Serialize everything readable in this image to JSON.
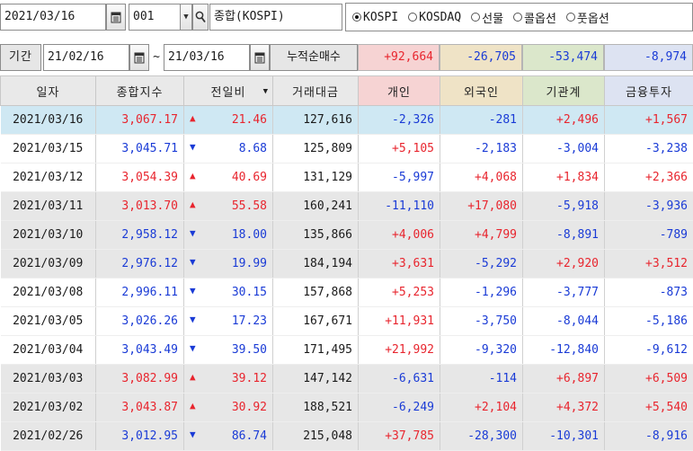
{
  "toolbar": {
    "date": "2021/03/16",
    "code": "001",
    "market_name": "종합(KOSPI)",
    "radio_options": [
      {
        "label": "KOSPI",
        "selected": true
      },
      {
        "label": "KOSDAQ",
        "selected": false
      },
      {
        "label": "선물",
        "selected": false
      },
      {
        "label": "콜옵션",
        "selected": false
      },
      {
        "label": "풋옵션",
        "selected": false
      }
    ]
  },
  "period": {
    "label": "기간",
    "start": "21/02/16",
    "sep": "~",
    "end": "21/03/16",
    "cumulative_label": "누적순매수",
    "sums": {
      "individual": "+92,664",
      "foreign": "-26,705",
      "institution": "-53,474",
      "financial": "-8,974"
    }
  },
  "colors": {
    "up": "#e8252e",
    "down": "#1a3bd6",
    "individual_header": "#f6d3d3",
    "foreign_header": "#efe3c6",
    "institution_header": "#dbe7cb",
    "financial_header": "#dde3f2",
    "selected_row": "#cfe8f3",
    "shaded_row": "#e7e7e7"
  },
  "table": {
    "headers": [
      "일자",
      "종합지수",
      "전일비",
      "거래대금",
      "개인",
      "외국인",
      "기관계",
      "금융투자"
    ],
    "rows": [
      {
        "date": "2021/03/16",
        "index": "3,067.17",
        "dir": "up",
        "change": "21.46",
        "volume": "127,616",
        "individual": "-2,326",
        "foreign": "-281",
        "institution": "+2,496",
        "financial": "+1,567",
        "style": "selected"
      },
      {
        "date": "2021/03/15",
        "index": "3,045.71",
        "dir": "down",
        "change": "8.68",
        "volume": "125,809",
        "individual": "+5,105",
        "foreign": "-2,183",
        "institution": "-3,004",
        "financial": "-3,238",
        "style": ""
      },
      {
        "date": "2021/03/12",
        "index": "3,054.39",
        "dir": "up",
        "change": "40.69",
        "volume": "131,129",
        "individual": "-5,997",
        "foreign": "+4,068",
        "institution": "+1,834",
        "financial": "+2,366",
        "style": ""
      },
      {
        "date": "2021/03/11",
        "index": "3,013.70",
        "dir": "up",
        "change": "55.58",
        "volume": "160,241",
        "individual": "-11,110",
        "foreign": "+17,080",
        "institution": "-5,918",
        "financial": "-3,936",
        "style": "shaded"
      },
      {
        "date": "2021/03/10",
        "index": "2,958.12",
        "dir": "down",
        "change": "18.00",
        "volume": "135,866",
        "individual": "+4,006",
        "foreign": "+4,799",
        "institution": "-8,891",
        "financial": "-789",
        "style": "shaded"
      },
      {
        "date": "2021/03/09",
        "index": "2,976.12",
        "dir": "down",
        "change": "19.99",
        "volume": "184,194",
        "individual": "+3,631",
        "foreign": "-5,292",
        "institution": "+2,920",
        "financial": "+3,512",
        "style": "shaded"
      },
      {
        "date": "2021/03/08",
        "index": "2,996.11",
        "dir": "down",
        "change": "30.15",
        "volume": "157,868",
        "individual": "+5,253",
        "foreign": "-1,296",
        "institution": "-3,777",
        "financial": "-873",
        "style": ""
      },
      {
        "date": "2021/03/05",
        "index": "3,026.26",
        "dir": "down",
        "change": "17.23",
        "volume": "167,671",
        "individual": "+11,931",
        "foreign": "-3,750",
        "institution": "-8,044",
        "financial": "-5,186",
        "style": ""
      },
      {
        "date": "2021/03/04",
        "index": "3,043.49",
        "dir": "down",
        "change": "39.50",
        "volume": "171,495",
        "individual": "+21,992",
        "foreign": "-9,320",
        "institution": "-12,840",
        "financial": "-9,612",
        "style": ""
      },
      {
        "date": "2021/03/03",
        "index": "3,082.99",
        "dir": "up",
        "change": "39.12",
        "volume": "147,142",
        "individual": "-6,631",
        "foreign": "-114",
        "institution": "+6,897",
        "financial": "+6,509",
        "style": "shaded"
      },
      {
        "date": "2021/03/02",
        "index": "3,043.87",
        "dir": "up",
        "change": "30.92",
        "volume": "188,521",
        "individual": "-6,249",
        "foreign": "+2,104",
        "institution": "+4,372",
        "financial": "+5,540",
        "style": "shaded"
      },
      {
        "date": "2021/02/26",
        "index": "3,012.95",
        "dir": "down",
        "change": "86.74",
        "volume": "215,048",
        "individual": "+37,785",
        "foreign": "-28,300",
        "institution": "-10,301",
        "financial": "-8,916",
        "style": "shaded"
      }
    ]
  }
}
